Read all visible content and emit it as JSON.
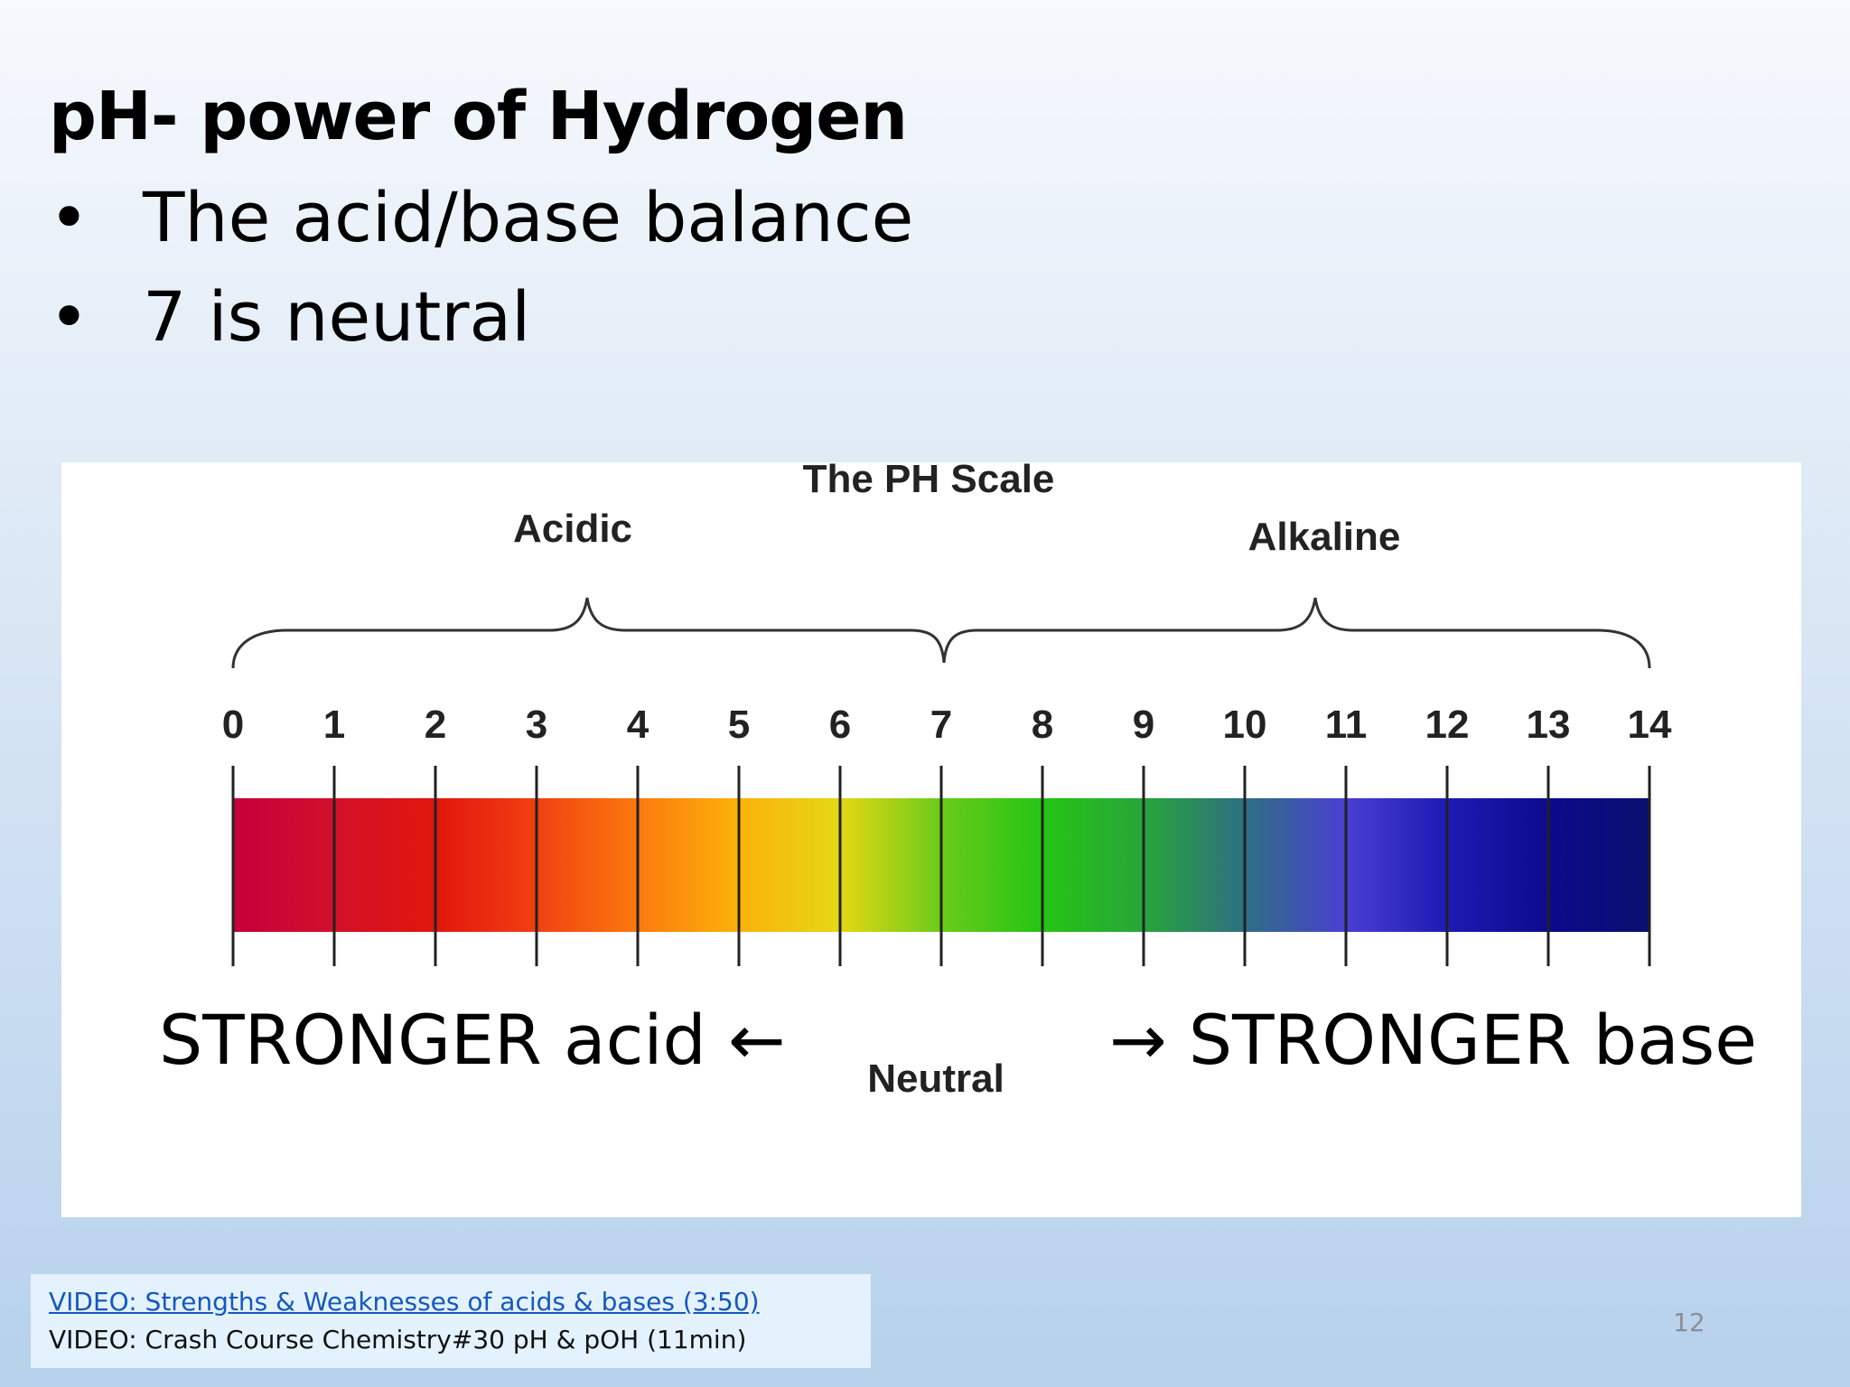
{
  "slide": {
    "title": "pH- power of Hydrogen",
    "bullets": [
      {
        "marker": "•",
        "text": "The acid/base balance"
      },
      {
        "marker": "•",
        "text": "7 is neutral"
      }
    ],
    "page_number": "12"
  },
  "figure": {
    "title": "The PH Scale",
    "acidic_label": "Acidic",
    "alkaline_label": "Alkaline",
    "neutral_label": "Neutral",
    "ticks": [
      "0",
      "1",
      "2",
      "3",
      "4",
      "5",
      "6",
      "7",
      "8",
      "9",
      "10",
      "11",
      "12",
      "13",
      "14"
    ],
    "bar_colors": [
      "#c4003b",
      "#d2102a",
      "#e0160c",
      "#f14012",
      "#fb7a0e",
      "#fcb20a",
      "#e6d714",
      "#6acb1a",
      "#26c414",
      "#27a53a",
      "#2e6f82",
      "#4a3fd2",
      "#1e1ab4",
      "#0c0a8c",
      "#0a0f6e"
    ],
    "stronger_acid": "STRONGER acid  ←",
    "stronger_base": "→ STRONGER base"
  },
  "videos": {
    "link_text": "VIDEO: Strengths & Weaknesses of acids & bases (3:50)",
    "second_text": "VIDEO: Crash Course Chemistry#30 pH & pOH (11min)"
  }
}
